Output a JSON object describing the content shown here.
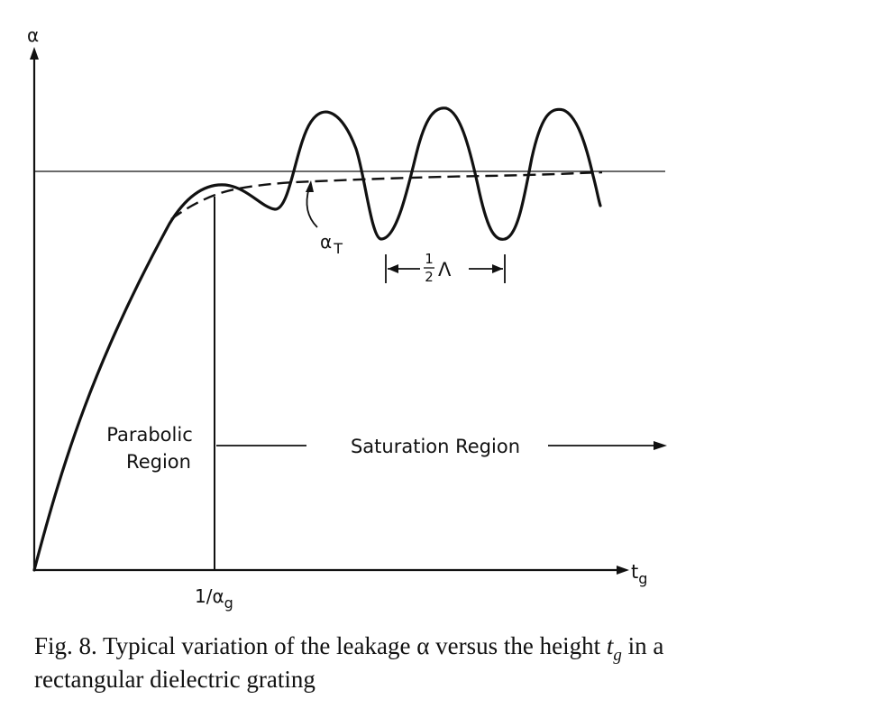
{
  "axes": {
    "y_label": "α",
    "x_label_base": "t",
    "x_label_sub": "g",
    "tick_label_base": "1/α",
    "tick_label_sub": "g"
  },
  "annotations": {
    "alpha_t_base": "α",
    "alpha_t_sub": "T",
    "half_lambda_num": "1",
    "half_lambda_den": "2",
    "half_lambda_sym": "Λ",
    "parabolic_line1": "Parabolic",
    "parabolic_line2": "Region",
    "saturation": "Saturation Region"
  },
  "caption": {
    "prefix": "Fig. 8. Typical variation of the leakage α versus the height ",
    "var_base": "t",
    "var_sub": "g",
    "suffix": " in a",
    "line2": "rectangular dielectric grating"
  },
  "colors": {
    "ink": "#111111",
    "background": "#ffffff"
  }
}
